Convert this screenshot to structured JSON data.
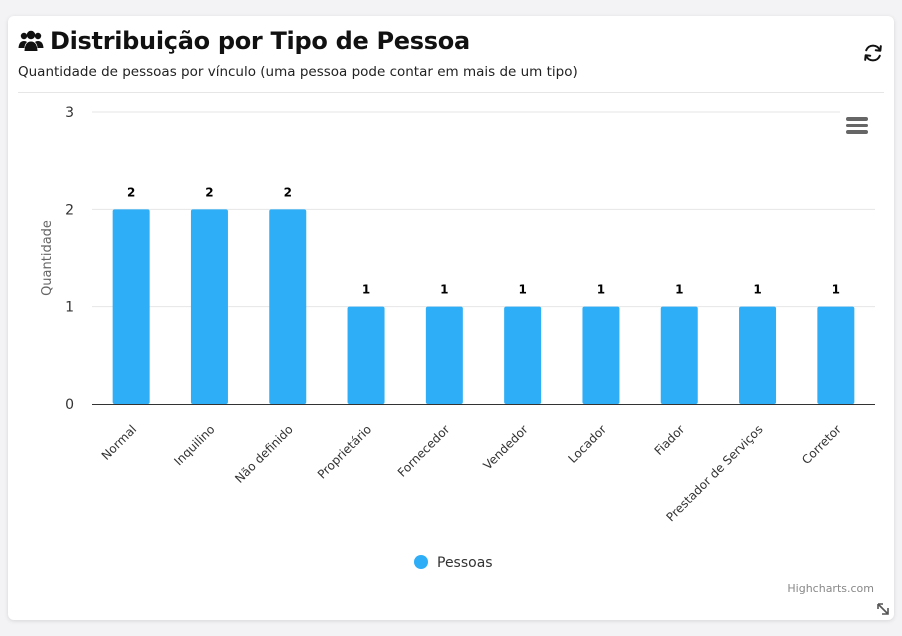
{
  "header": {
    "title": "Distribuição por Tipo de Pessoa",
    "subtitle": "Quantidade de pessoas por vínculo (uma pessoa pode contar em mais de um tipo)",
    "title_icon": "users-icon",
    "refresh_icon": "refresh-icon"
  },
  "menu_icon": "hamburger-menu-icon",
  "credits": "Highcharts.com",
  "colors": {
    "bar": "#2eaef7",
    "grid": "#e6e6e6",
    "axis": "#333333"
  },
  "chart_data": {
    "type": "bar",
    "categories": [
      "Normal",
      "Inquilino",
      "Não definido",
      "Proprietário",
      "Fornecedor",
      "Vendedor",
      "Locador",
      "Fiador",
      "Prestador de Serviços",
      "Corretor"
    ],
    "series": [
      {
        "name": "Pessoas",
        "values": [
          2,
          2,
          2,
          1,
          1,
          1,
          1,
          1,
          1,
          1
        ]
      }
    ],
    "ylabel": "Quantidade",
    "ylim": [
      0,
      3
    ],
    "yticks": [
      0,
      1,
      2,
      3
    ],
    "data_labels": true,
    "legend": "bottom-center",
    "grid": true
  }
}
